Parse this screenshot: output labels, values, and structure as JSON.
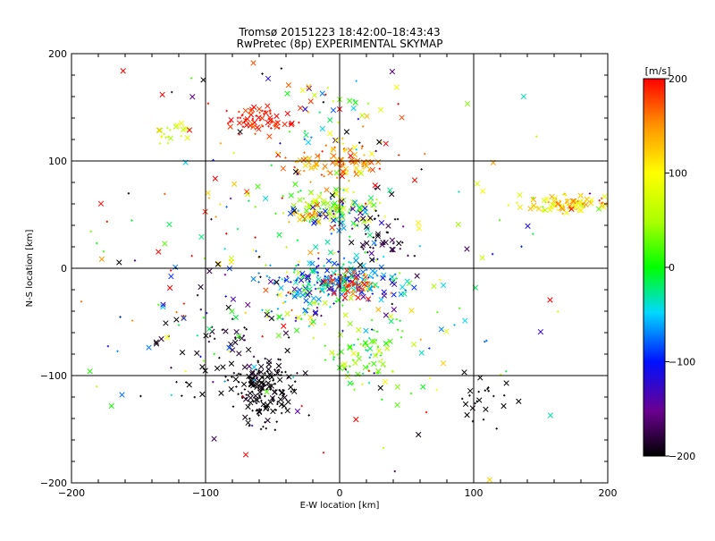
{
  "chart_data": {
    "type": "scatter",
    "title": "Tromsø 20151223 18:42:00–18:43:43",
    "subtitle": "RwPretec (8p) EXPERIMENTAL SKYMAP",
    "xlabel": "E-W location [km]",
    "ylabel": "N-S location [km]",
    "xlim": [
      -200,
      200
    ],
    "ylim": [
      -200,
      200
    ],
    "xticks": [
      "−200",
      "−100",
      "0",
      "100",
      "200"
    ],
    "yticks": [
      "−200",
      "−100",
      "0",
      "100",
      "200"
    ],
    "grid": true,
    "colorbar": {
      "label": "[m/s]",
      "range": [
        -200,
        200
      ],
      "ticks": [
        "200",
        "100",
        "0",
        "−100",
        "−200"
      ]
    },
    "markers": [
      "x (large)",
      "+ (small)"
    ],
    "clusters": [
      {
        "x": 0,
        "y": 100,
        "sx": 18,
        "sy": 8,
        "n": 110,
        "v": 150,
        "sv": 25
      },
      {
        "x": -5,
        "y": 55,
        "sx": 18,
        "sy": 8,
        "n": 120,
        "v": 40,
        "sv": 40
      },
      {
        "x": -25,
        "y": 50,
        "sx": 5,
        "sy": 3,
        "n": 15,
        "v": 160,
        "sv": 15
      },
      {
        "x": 5,
        "y": 48,
        "sx": 12,
        "sy": 8,
        "n": 40,
        "v": -100,
        "sv": 40
      },
      {
        "x": 30,
        "y": 30,
        "sx": 10,
        "sy": 15,
        "n": 45,
        "v": -190,
        "sv": 15
      },
      {
        "x": 0,
        "y": -10,
        "sx": 25,
        "sy": 10,
        "n": 240,
        "v": -60,
        "sv": 50
      },
      {
        "x": 10,
        "y": -15,
        "sx": 10,
        "sy": 6,
        "n": 50,
        "v": 180,
        "sv": 20
      },
      {
        "x": -30,
        "y": -35,
        "sx": 14,
        "sy": 8,
        "n": 45,
        "v": -30,
        "sv": 100
      },
      {
        "x": 15,
        "y": -80,
        "sx": 14,
        "sy": 14,
        "n": 80,
        "v": 30,
        "sv": 30
      },
      {
        "x": -55,
        "y": -115,
        "sx": 12,
        "sy": 14,
        "n": 150,
        "v": -200,
        "sv": 5
      },
      {
        "x": -85,
        "y": -80,
        "sx": 25,
        "sy": 30,
        "n": 70,
        "v": -190,
        "sv": 15
      },
      {
        "x": -60,
        "y": 138,
        "sx": 14,
        "sy": 7,
        "n": 75,
        "v": 190,
        "sv": 15
      },
      {
        "x": -10,
        "y": 140,
        "sx": 25,
        "sy": 30,
        "n": 50,
        "v": 0,
        "sv": 130
      },
      {
        "x": 170,
        "y": 60,
        "sx": 15,
        "sy": 4,
        "n": 90,
        "v": 110,
        "sv": 35
      },
      {
        "x": -125,
        "y": 125,
        "sx": 8,
        "sy": 4,
        "n": 20,
        "v": 80,
        "sv": 20
      },
      {
        "x": 110,
        "y": -120,
        "sx": 12,
        "sy": 12,
        "n": 25,
        "v": -200,
        "sv": 5
      },
      {
        "x": 45,
        "y": -60,
        "sx": 35,
        "sy": 35,
        "n": 40,
        "v": 0,
        "sv": 140
      },
      {
        "x": -100,
        "y": 0,
        "sx": 60,
        "sy": 90,
        "n": 140,
        "v": 0,
        "sv": 150
      },
      {
        "x": 0,
        "y": 0,
        "sx": 110,
        "sy": 110,
        "n": 140,
        "v": 0,
        "sv": 150
      }
    ]
  }
}
